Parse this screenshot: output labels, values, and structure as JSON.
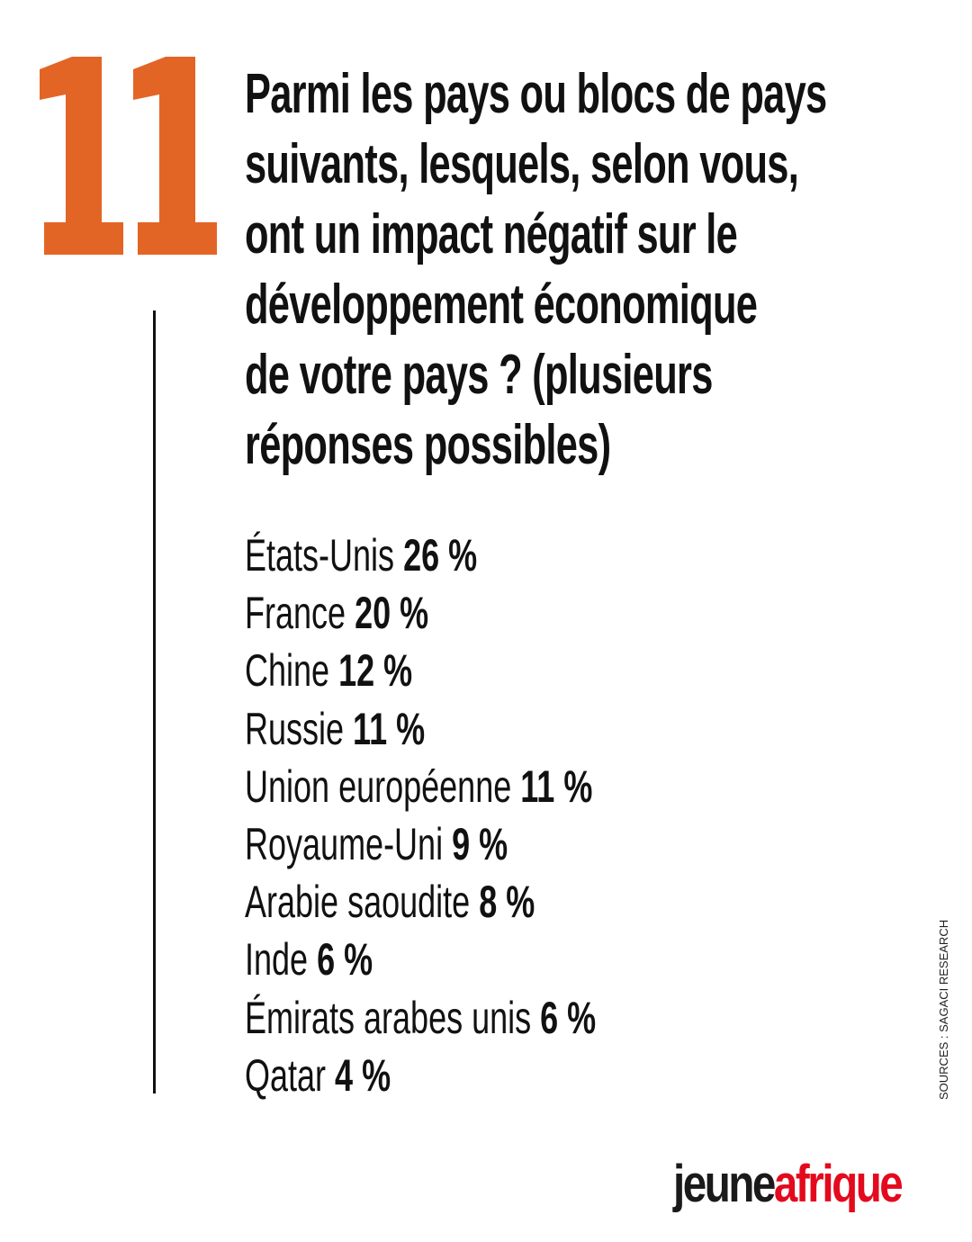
{
  "question_number": "11",
  "accent_color": "#E36526",
  "title_lines": [
    "Parmi les pays ou blocs de pays",
    "suivants, lesquels, selon vous,",
    "ont un impact négatif sur le",
    "développement économique",
    "de votre pays ? (plusieurs",
    "réponses possibles)"
  ],
  "results": [
    {
      "label": "États-Unis",
      "value": "26 %"
    },
    {
      "label": "France",
      "value": "20 %"
    },
    {
      "label": "Chine",
      "value": "12 %"
    },
    {
      "label": "Russie",
      "value": "11 %"
    },
    {
      "label": "Union européenne",
      "value": "11 %"
    },
    {
      "label": "Royaume-Uni",
      "value": "9 %"
    },
    {
      "label": "Arabie saoudite",
      "value": "8 %"
    },
    {
      "label": "Inde",
      "value": "6 %"
    },
    {
      "label": "Émirats arabes unis",
      "value": "6 %"
    },
    {
      "label": "Qatar",
      "value": "4 %"
    }
  ],
  "source": "SOURCES : SAGACI RESEARCH",
  "logo": {
    "part1": "jeune",
    "part2": "afrique",
    "color1": "#1a1a1a",
    "color2": "#E30A1E"
  }
}
